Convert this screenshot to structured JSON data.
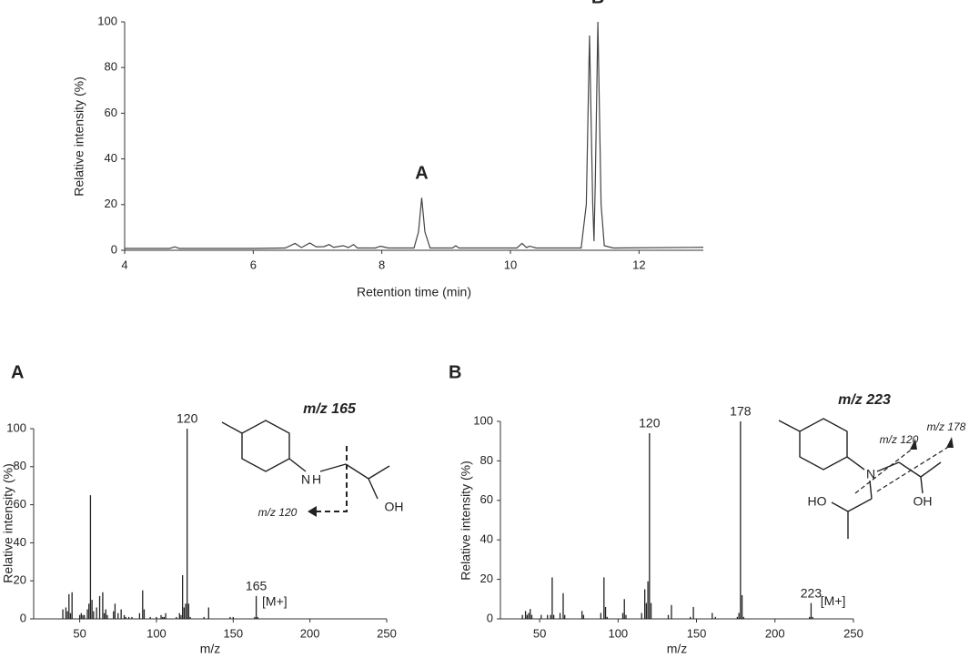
{
  "chart_data": [
    {
      "type": "line",
      "xlabel": "Retention time (min)",
      "ylabel": "Relative intensity (%)",
      "x": [
        4,
        4.7,
        4.78,
        4.85,
        6,
        6.5,
        6.65,
        6.75,
        6.88,
        6.98,
        7.1,
        7.18,
        7.25,
        7.4,
        7.48,
        7.56,
        7.62,
        7.9,
        7.98,
        8.1,
        8.5,
        8.57,
        8.62,
        8.67,
        8.75,
        9.1,
        9.15,
        9.2,
        10.1,
        10.18,
        10.25,
        10.3,
        10.4,
        11.1,
        11.18,
        11.23,
        11.28,
        11.3,
        11.32,
        11.36,
        11.41,
        11.46,
        11.6,
        13
      ],
      "series": [
        {
          "color": "#444444",
          "values": [
            0.8,
            0.8,
            1.5,
            0.8,
            0.8,
            1.0,
            3,
            1.2,
            3.2,
            1.5,
            1.6,
            2.5,
            1.3,
            2.0,
            1.2,
            2.5,
            1.0,
            1.0,
            1.8,
            1.0,
            1.0,
            8,
            23,
            8,
            1.0,
            1.0,
            2,
            1.0,
            1.0,
            3,
            1.2,
            1.8,
            1.0,
            1.0,
            20,
            94,
            20,
            4,
            30,
            100,
            20,
            2,
            1.0,
            1.3
          ]
        }
      ],
      "xlim": [
        4,
        13
      ],
      "xticks": [
        4,
        6,
        8,
        10,
        12
      ],
      "ylim": [
        0,
        100
      ],
      "yticks": [
        0,
        20,
        40,
        60,
        80,
        100
      ],
      "annotations": [
        {
          "text": "A",
          "x": 8.62,
          "y": 23
        },
        {
          "text": "B",
          "x": 11.36,
          "y": 100
        }
      ]
    },
    {
      "type": "bar",
      "panel_label": "A",
      "structure_title": "m/z 165",
      "structure_labels": [
        "N",
        "H",
        "OH",
        "m/z 120"
      ],
      "xlabel": "m/z",
      "ylabel": "Relative intensity (%)",
      "color": "#222222",
      "x": [
        39,
        41,
        42,
        43,
        44,
        45,
        50,
        51,
        52,
        53,
        55,
        56,
        57,
        58,
        59,
        61,
        63,
        65,
        66,
        67,
        68,
        72,
        73,
        75,
        77,
        79,
        80,
        82,
        84,
        89,
        91,
        92,
        96,
        100,
        103,
        104,
        105,
        106,
        113,
        115,
        116,
        117,
        118,
        119,
        120,
        121,
        122,
        131,
        134,
        148,
        150,
        164,
        165,
        166
      ],
      "values": [
        5,
        6,
        4,
        13,
        3,
        14,
        2,
        3,
        2,
        2,
        5,
        8,
        65,
        10,
        4,
        6,
        12,
        14,
        3,
        5,
        2,
        4,
        8,
        3,
        5,
        2,
        1,
        1,
        1,
        3,
        15,
        5,
        1,
        1,
        2,
        1,
        1,
        3,
        1,
        3,
        2,
        23,
        6,
        8,
        100,
        8,
        1,
        1,
        6,
        1,
        1,
        1,
        12,
        1
      ],
      "xlim": [
        20,
        250
      ],
      "xticks": [
        50,
        100,
        150,
        200,
        250
      ],
      "ylim": [
        0,
        100
      ],
      "yticks": [
        0,
        20,
        40,
        60,
        80,
        100
      ],
      "annotations": [
        {
          "text": "120",
          "x": 120,
          "y": 100
        },
        {
          "text": "165",
          "x": 165,
          "y": 12
        },
        {
          "text": "[M+]",
          "x": 177,
          "y": 4
        }
      ]
    },
    {
      "type": "bar",
      "panel_label": "B",
      "structure_title": "m/z 223",
      "structure_labels": [
        "N",
        "HO",
        "OH",
        "m/z 120",
        "m/z 178"
      ],
      "xlabel": "m/z",
      "ylabel": "Relative intensity (%)",
      "color": "#222222",
      "x": [
        39,
        41,
        42,
        43,
        44,
        45,
        51,
        55,
        57,
        58,
        59,
        63,
        65,
        66,
        77,
        78,
        89,
        91,
        92,
        93,
        103,
        104,
        105,
        115,
        117,
        118,
        119,
        120,
        121,
        132,
        134,
        146,
        148,
        160,
        162,
        176,
        177,
        178,
        179,
        180,
        222,
        223,
        224
      ],
      "values": [
        2,
        4,
        2,
        3,
        5,
        2,
        2,
        2,
        2,
        21,
        2,
        3,
        13,
        2,
        4,
        2,
        3,
        21,
        6,
        1,
        3,
        10,
        2,
        3,
        15,
        8,
        19,
        94,
        8,
        2,
        7,
        1,
        6,
        3,
        1,
        1,
        3,
        100,
        12,
        1,
        1,
        8,
        1
      ],
      "xlim": [
        25,
        250
      ],
      "xticks": [
        50,
        100,
        150,
        200,
        250
      ],
      "ylim": [
        0,
        100
      ],
      "yticks": [
        0,
        20,
        40,
        60,
        80,
        100
      ],
      "annotations": [
        {
          "text": "120",
          "x": 120,
          "y": 94
        },
        {
          "text": "178",
          "x": 178,
          "y": 100
        },
        {
          "text": "223",
          "x": 223,
          "y": 8
        },
        {
          "text": "[M+]",
          "x": 237,
          "y": 4
        }
      ]
    }
  ]
}
